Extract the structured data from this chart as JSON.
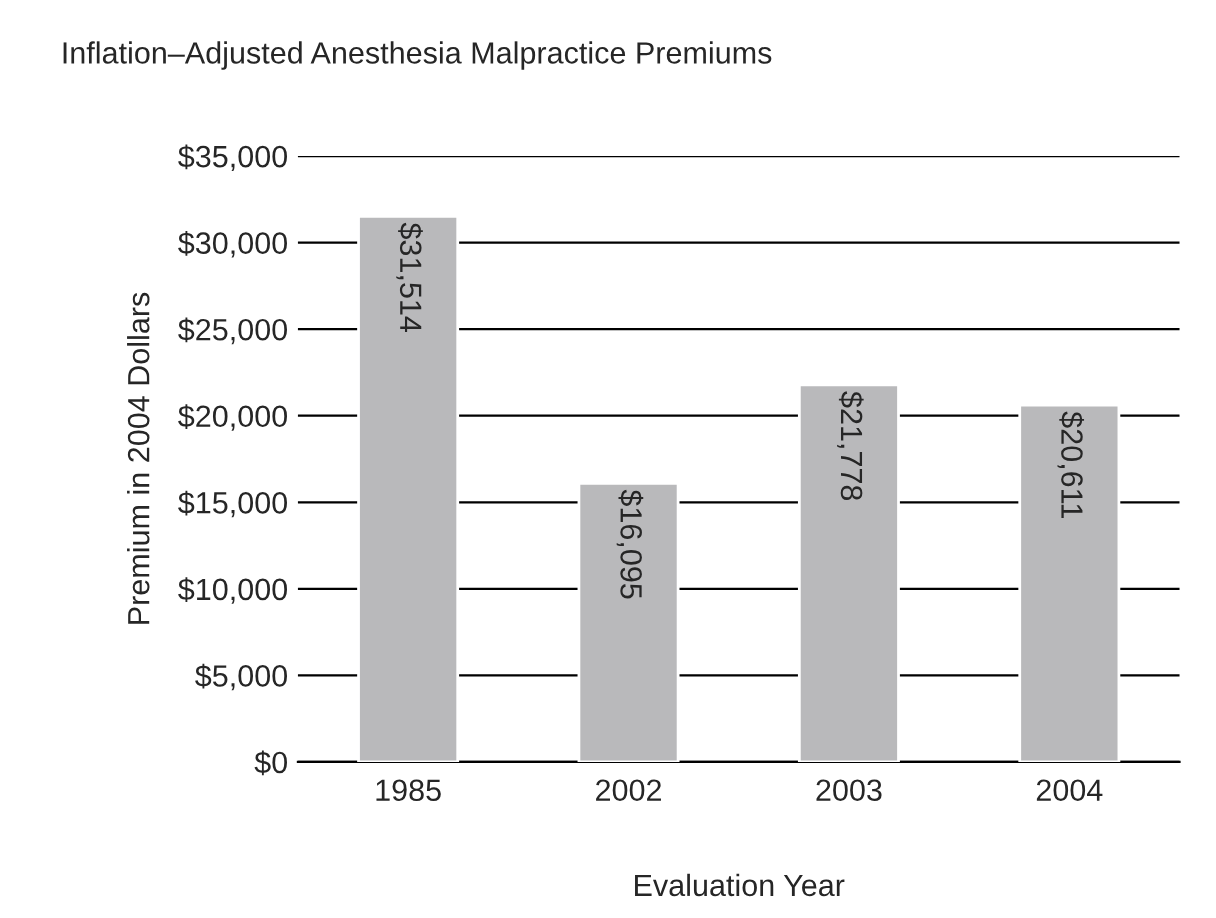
{
  "chart_data": {
    "type": "bar",
    "title": "Inflation–Adjusted Anesthesia Malpractice Premiums",
    "xlabel": "Evaluation Year",
    "ylabel": "Premium in 2004 Dollars",
    "categories": [
      "1985",
      "2002",
      "2003",
      "2004"
    ],
    "values": [
      31514,
      16095,
      21778,
      20611
    ],
    "value_labels": [
      "$31,514",
      "$16,095",
      "$21,778",
      "$20,611"
    ],
    "color": "#b9b9bb",
    "ylim": [
      0,
      35000
    ],
    "yticks": [
      {
        "value": 0,
        "label": "$0"
      },
      {
        "value": 5000,
        "label": "$5,000"
      },
      {
        "value": 10000,
        "label": "$10,000"
      },
      {
        "value": 15000,
        "label": "$15,000"
      },
      {
        "value": 20000,
        "label": "$20,000"
      },
      {
        "value": 25000,
        "label": "$25,000"
      },
      {
        "value": 30000,
        "label": "$30,000"
      },
      {
        "value": 35000,
        "label": "$35,000"
      }
    ],
    "grid": "y"
  }
}
